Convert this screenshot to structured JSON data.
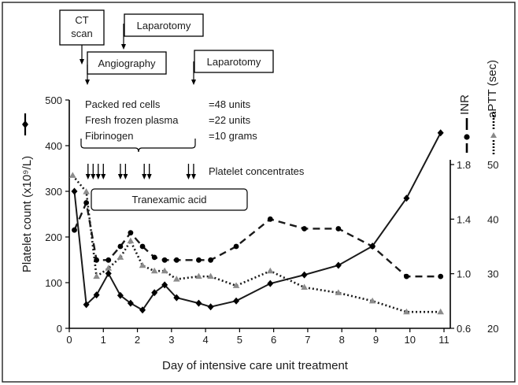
{
  "chart_data": {
    "type": "line",
    "xlabel": "Day of intensive care unit treatment",
    "ylabel_left": "Platelet count (x10⁹/L)",
    "ylabel_inr": "INR",
    "ylabel_aptt": "aPTT (sec)",
    "x_ticks": [
      "0",
      "1",
      "2",
      "3",
      "4",
      "5",
      "6",
      "7",
      "8",
      "9",
      "10",
      "11"
    ],
    "xlim": [
      0,
      11
    ],
    "y_left_ticks": [
      "0",
      "100",
      "200",
      "300",
      "400",
      "500"
    ],
    "y_left_lim": [
      0,
      500
    ],
    "inr_ticks": [
      "0.6",
      "1.0",
      "1.4",
      "1.8"
    ],
    "inr_lim": [
      0.6,
      1.8
    ],
    "aptt_ticks": [
      "20",
      "30",
      "40",
      "50"
    ],
    "aptt_lim": [
      20,
      50
    ],
    "series": [
      {
        "axis": "left",
        "x": [
          0.15,
          0.5,
          0.8,
          1.15,
          1.5,
          1.8,
          2.15,
          2.5,
          2.8,
          3.15,
          3.8,
          4.15,
          4.9,
          5.9,
          6.9,
          7.9,
          8.9,
          9.9,
          10.9
        ],
        "y": [
          300,
          52,
          73,
          120,
          72,
          55,
          40,
          78,
          95,
          67,
          55,
          47,
          60,
          98,
          117,
          138,
          180,
          285,
          428
        ]
      },
      {
        "axis": "inr",
        "x": [
          0.15,
          0.5,
          0.8,
          1.15,
          1.5,
          1.8,
          2.15,
          2.5,
          2.8,
          3.15,
          3.8,
          4.15,
          4.9,
          5.9,
          6.9,
          7.9,
          8.9,
          9.9,
          10.9
        ],
        "y": [
          1.32,
          1.52,
          1.1,
          1.1,
          1.2,
          1.3,
          1.2,
          1.12,
          1.1,
          1.1,
          1.1,
          1.1,
          1.2,
          1.4,
          1.33,
          1.33,
          1.2,
          0.98,
          0.98
        ]
      },
      {
        "axis": "aptt",
        "x": [
          0.1,
          0.5,
          0.8,
          1.15,
          1.5,
          1.8,
          2.15,
          2.5,
          2.8,
          3.15,
          3.8,
          4.15,
          4.9,
          5.9,
          6.9,
          7.9,
          8.9,
          9.9,
          10.9
        ],
        "y": [
          48,
          45,
          29.5,
          31,
          33,
          36,
          31.5,
          30.5,
          30.5,
          29,
          29.5,
          29.5,
          27.8,
          30.5,
          27.5,
          26.5,
          25,
          23,
          23
        ]
      }
    ],
    "annotations": {
      "ct_scan": [
        "CT",
        "scan"
      ],
      "laparotomy_1": "Laparotomy",
      "angiography": "Angiography",
      "laparotomy_2": "Laparotomy",
      "blood_products": [
        {
          "name": "Packed red cells",
          "amount": "=48 units"
        },
        {
          "name": "Fresh frozen plasma",
          "amount": "=22 units"
        },
        {
          "name": "Fibrinogen",
          "amount": "=10 grams"
        }
      ],
      "platelet_concentrates": {
        "label": "Platelet concentrates",
        "days": [
          0.55,
          0.7,
          0.85,
          1.0,
          1.5,
          1.65,
          2.2,
          2.35,
          3.5,
          3.65
        ]
      },
      "tranexamic_acid": "Tranexamic acid"
    }
  }
}
